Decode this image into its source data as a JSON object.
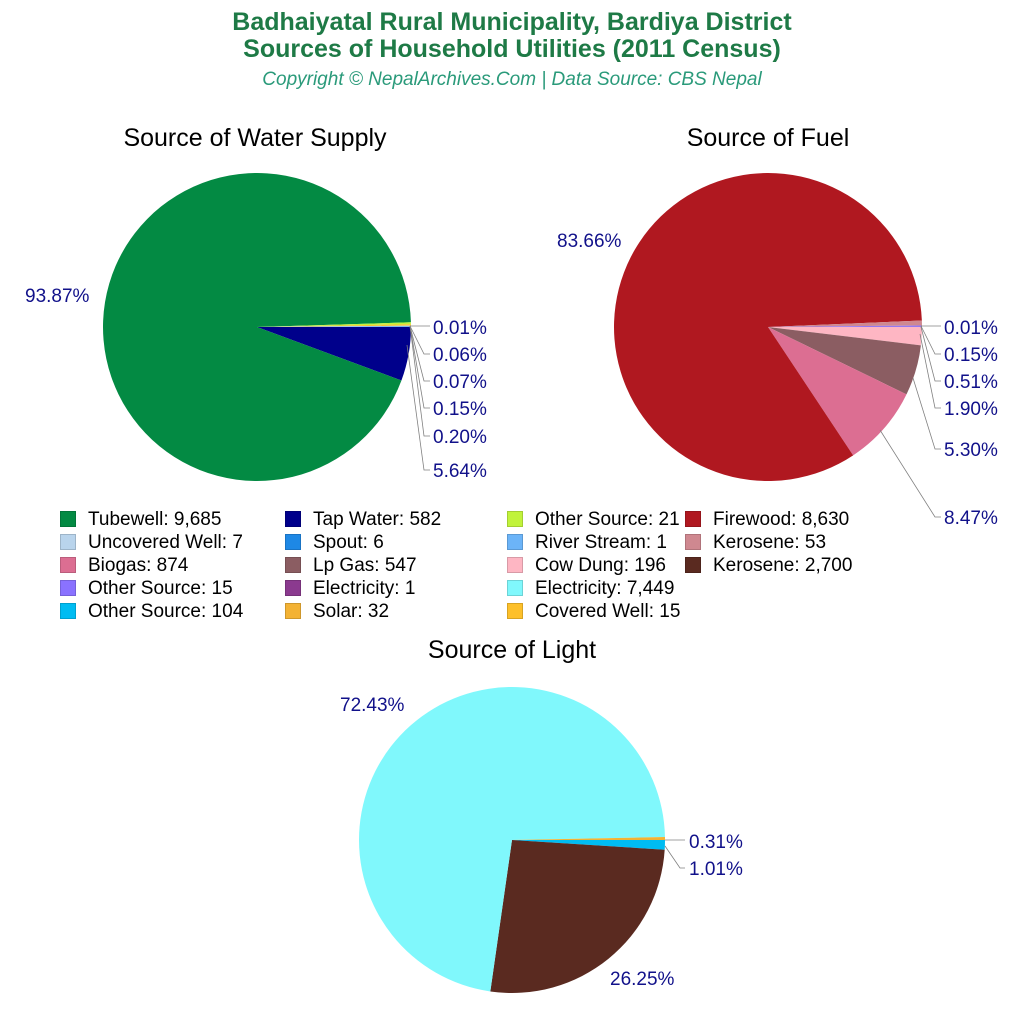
{
  "header": {
    "title_line1": "Badhaiyatal Rural Municipality, Bardiya District",
    "title_line2": "Sources of Household Utilities (2011 Census)",
    "subtitle": "Copyright © NepalArchives.Com | Data Source: CBS Nepal"
  },
  "charts": {
    "water": {
      "title": "Source of Water Supply"
    },
    "fuel": {
      "title": "Source of Fuel"
    },
    "light": {
      "title": "Source of Light"
    }
  },
  "legend": [
    {
      "label": "Tubewell: 9,685",
      "color": "#038a43"
    },
    {
      "label": "Uncovered Well: 7",
      "color": "#b9d4ec"
    },
    {
      "label": "Biogas: 874",
      "color": "#dc6e92"
    },
    {
      "label": "Other Source: 15",
      "color": "#8a72ff"
    },
    {
      "label": "Other Source: 104",
      "color": "#00bcf2"
    },
    {
      "label": "Tap Water: 582",
      "color": "#00008b"
    },
    {
      "label": "Spout: 6",
      "color": "#1e88e5"
    },
    {
      "label": "Lp Gas: 547",
      "color": "#8b5d62"
    },
    {
      "label": "Electricity: 1",
      "color": "#8b3a8f"
    },
    {
      "label": "Solar: 32",
      "color": "#f3b234"
    },
    {
      "label": "Other Source: 21",
      "color": "#c1f33b"
    },
    {
      "label": "River Stream: 1",
      "color": "#6cb4f8"
    },
    {
      "label": "Cow Dung: 196",
      "color": "#feb6c3"
    },
    {
      "label": "Electricity: 7,449",
      "color": "#80f8fc"
    },
    {
      "label": "Covered Well: 15",
      "color": "#fdc02a"
    },
    {
      "label": "Firewood: 8,630",
      "color": "#b01820"
    },
    {
      "label": "Kerosene: 53",
      "color": "#cf8890"
    },
    {
      "label": "Kerosene: 2,700",
      "color": "#5a2a20"
    }
  ],
  "chart_data": [
    {
      "type": "pie",
      "title": "Source of Water Supply",
      "categories": [
        "Tubewell",
        "Tap Water",
        "Other Source",
        "Covered Well",
        "Uncovered Well",
        "Spout",
        "River Stream"
      ],
      "values": [
        9685,
        582,
        21,
        15,
        7,
        6,
        1
      ],
      "percent_labels": [
        "93.87%",
        "5.64%",
        "0.20%",
        "0.15%",
        "0.07%",
        "0.06%",
        "0.01%"
      ],
      "colors": [
        "#038a43",
        "#00008b",
        "#c1f33b",
        "#fdc02a",
        "#b9d4ec",
        "#1e88e5",
        "#6cb4f8"
      ]
    },
    {
      "type": "pie",
      "title": "Source of Fuel",
      "categories": [
        "Firewood",
        "Biogas",
        "Lp Gas",
        "Cow Dung",
        "Kerosene",
        "Other Source",
        "Electricity"
      ],
      "values": [
        8630,
        874,
        547,
        196,
        53,
        15,
        1
      ],
      "percent_labels": [
        "83.66%",
        "8.47%",
        "5.30%",
        "1.90%",
        "0.51%",
        "0.15%",
        "0.01%"
      ],
      "colors": [
        "#b01820",
        "#dc6e92",
        "#8b5d62",
        "#feb6c3",
        "#cf8890",
        "#8a72ff",
        "#8b3a8f"
      ]
    },
    {
      "type": "pie",
      "title": "Source of Light",
      "categories": [
        "Electricity",
        "Kerosene",
        "Other Source",
        "Solar"
      ],
      "values": [
        7449,
        2700,
        104,
        32
      ],
      "percent_labels": [
        "72.43%",
        "26.25%",
        "1.01%",
        "0.31%"
      ],
      "colors": [
        "#80f8fc",
        "#5a2a20",
        "#00bcf2",
        "#f3b234"
      ]
    }
  ]
}
